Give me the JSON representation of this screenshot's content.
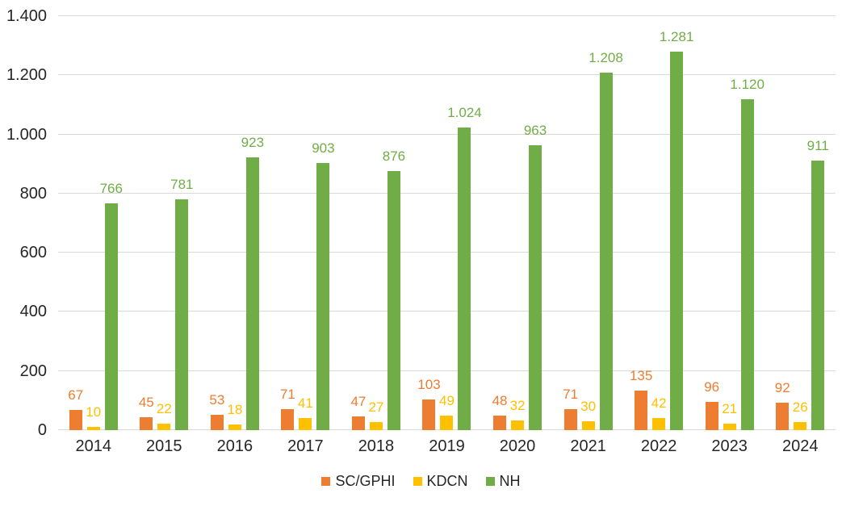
{
  "chart_data": {
    "type": "bar",
    "title": "",
    "categories": [
      "2014",
      "2015",
      "2016",
      "2017",
      "2018",
      "2019",
      "2020",
      "2021",
      "2022",
      "2023",
      "2024"
    ],
    "series": [
      {
        "name": "SC/GPHI",
        "color": "#ED7D31",
        "values": [
          67,
          45,
          53,
          71,
          47,
          103,
          48,
          71,
          135,
          96,
          92
        ]
      },
      {
        "name": "KDCN",
        "color": "#FFC000",
        "values": [
          10,
          22,
          18,
          41,
          27,
          49,
          32,
          30,
          42,
          21,
          26
        ]
      },
      {
        "name": "NH",
        "color": "#70AD47",
        "values": [
          766,
          781,
          923,
          903,
          876,
          1024,
          963,
          1208,
          1281,
          1120,
          911
        ]
      }
    ],
    "ylim": [
      0,
      1400
    ],
    "ytick_interval": 200,
    "ytick_labels": [
      "0",
      "200",
      "400",
      "600",
      "800",
      "1.000",
      "1.200",
      "1.400"
    ],
    "xlabel": "",
    "ylabel": "",
    "grid": true,
    "data_labels": true,
    "data_label_format": "thousands-dot",
    "legend_position": "bottom",
    "colors": {
      "grid": "#D9D9D9",
      "axis_text": "#262626",
      "background": "#FFFFFF"
    }
  }
}
